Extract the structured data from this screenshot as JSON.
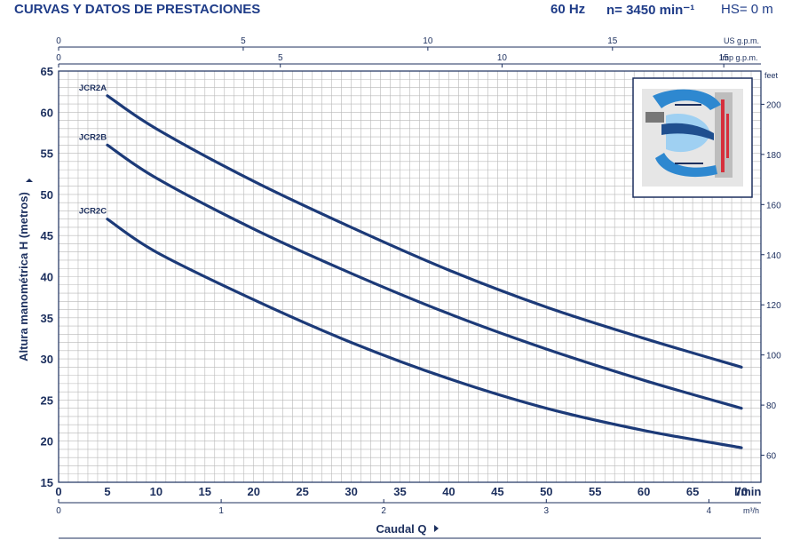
{
  "header": {
    "title": "CURVAS Y DATOS DE PRESTACIONES",
    "freq": "60 Hz",
    "speed": "n= 3450 min⁻¹",
    "hs": "HS= 0 m"
  },
  "chart_data": {
    "type": "line",
    "title": "CURVAS Y DATOS DE PRESTACIONES",
    "ylabel": "Altura manométrica H (metros)",
    "xlabel": "Caudal Q",
    "x_unit": "l/min",
    "xlim": [
      0,
      72
    ],
    "ylim": [
      15,
      65
    ],
    "x_ticks": [
      0,
      5,
      10,
      15,
      20,
      25,
      30,
      35,
      40,
      45,
      50,
      55,
      60,
      65,
      70
    ],
    "y_ticks": [
      15,
      20,
      25,
      30,
      35,
      40,
      45,
      50,
      55,
      60,
      65
    ],
    "grid": true,
    "secondary_axes": {
      "top_us": {
        "label": "US g.p.m.",
        "ticks": [
          "0",
          "5",
          "10",
          "15"
        ],
        "values": [
          0,
          5,
          10,
          15
        ]
      },
      "top_imp": {
        "label": "Imp g.p.m.",
        "ticks": [
          "0",
          "5",
          "10",
          "15"
        ],
        "values": [
          0,
          5,
          10,
          15
        ]
      },
      "bottom_m3h": {
        "label": "m³/h",
        "ticks": [
          "0",
          "1",
          "2",
          "3",
          "4"
        ],
        "values": [
          0,
          1,
          2,
          3,
          4
        ]
      },
      "right_feet": {
        "label": "feet",
        "ticks": [
          "60",
          "80",
          "100",
          "120",
          "140",
          "160",
          "180",
          "200"
        ],
        "values": [
          60,
          80,
          100,
          120,
          140,
          160,
          180,
          200
        ]
      }
    },
    "series": [
      {
        "name": "JCR2A",
        "x": [
          5,
          10,
          20,
          30,
          40,
          50,
          60,
          70
        ],
        "y": [
          62,
          58,
          51.6,
          46,
          40.8,
          36.3,
          32.5,
          29
        ]
      },
      {
        "name": "JCR2B",
        "x": [
          5,
          10,
          20,
          30,
          40,
          50,
          60,
          70
        ],
        "y": [
          56,
          52,
          45.8,
          40.4,
          35.5,
          31.2,
          27.4,
          24
        ]
      },
      {
        "name": "JCR2C",
        "x": [
          5,
          10,
          20,
          30,
          40,
          50,
          60,
          70
        ],
        "y": [
          47,
          43,
          37.2,
          32,
          27.6,
          24,
          21.3,
          19.2
        ]
      }
    ]
  },
  "icons": {
    "pump": "pump-cross-section-icon",
    "arrow": "arrow-right-icon"
  },
  "colors": {
    "curve": "#1c3a78",
    "grid": "#b8b8b8",
    "axis": "#1c2f5e",
    "header": "#1f3c88",
    "pump_blue": "#2e88d0",
    "pump_red": "#d62f3b"
  }
}
